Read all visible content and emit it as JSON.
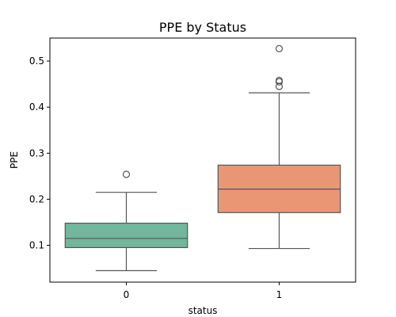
{
  "chart_data": {
    "type": "box",
    "title": "PPE by Status",
    "xlabel": "status",
    "ylabel": "PPE",
    "ylim": [
      0.02,
      0.55
    ],
    "yticks": [
      0.1,
      0.2,
      0.3,
      0.4,
      0.5
    ],
    "ytick_labels": [
      "0.1",
      "0.2",
      "0.3",
      "0.4",
      "0.5"
    ],
    "grid": false,
    "categories": [
      "0",
      "1"
    ],
    "boxes": [
      {
        "category": "0",
        "whisker_low": 0.045,
        "q1": 0.095,
        "median": 0.115,
        "q3": 0.148,
        "whisker_high": 0.215,
        "outliers": [
          0.254
        ],
        "color": "#72b79d"
      },
      {
        "category": "1",
        "whisker_low": 0.093,
        "q1": 0.171,
        "median": 0.222,
        "q3": 0.274,
        "whisker_high": 0.431,
        "outliers": [
          0.445,
          0.455,
          0.458,
          0.527
        ],
        "color": "#e99675"
      }
    ]
  }
}
